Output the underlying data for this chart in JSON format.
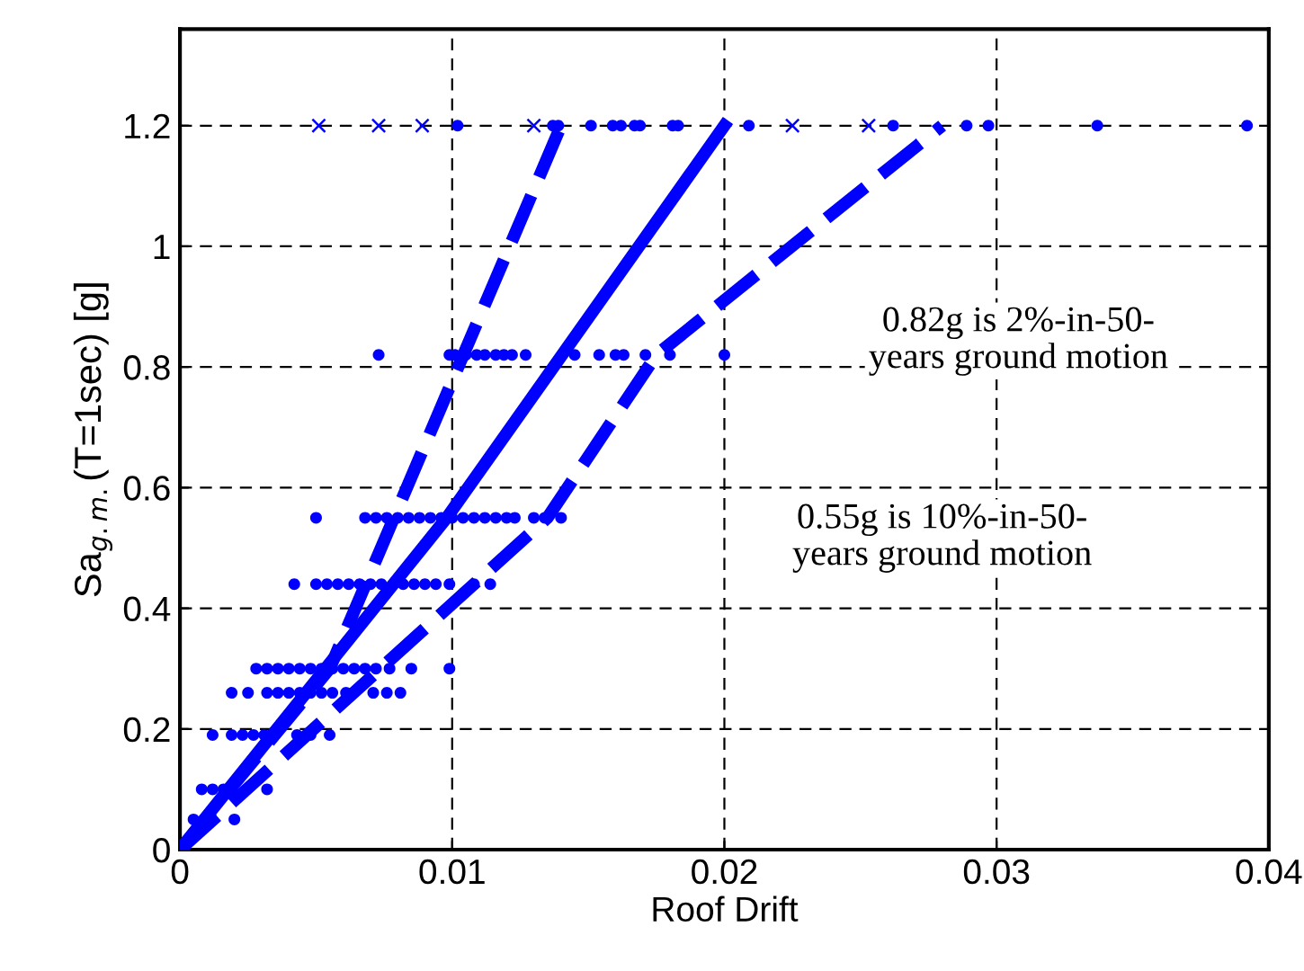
{
  "chart_data": {
    "type": "scatter",
    "xlabel": "Roof Drift",
    "ylabel": "Sa$_{g.m.}$(T=1sec) [g]",
    "xlim": [
      0,
      0.04
    ],
    "ylim": [
      0,
      1.36
    ],
    "xticks": [
      0,
      0.01,
      0.02,
      0.03,
      0.04
    ],
    "yticks": [
      0,
      0.2,
      0.4,
      0.6,
      0.8,
      1,
      1.2
    ],
    "grid": true,
    "series": [
      {
        "type": "scatter",
        "marker": "circle",
        "color": "#0000ff",
        "x": [
          0.0102,
          0.0137,
          0.0139,
          0.0151,
          0.0159,
          0.0162,
          0.0167,
          0.0169,
          0.0181,
          0.0183,
          0.0209,
          0.0262,
          0.0289,
          0.0297,
          0.0337,
          0.0392,
          0.0073,
          0.0099,
          0.0101,
          0.0105,
          0.0109,
          0.0112,
          0.0116,
          0.0119,
          0.0122,
          0.0127,
          0.0145,
          0.0154,
          0.016,
          0.0163,
          0.0171,
          0.018,
          0.02,
          0.005,
          0.0068,
          0.0072,
          0.0076,
          0.008,
          0.0084,
          0.0088,
          0.0092,
          0.0096,
          0.01,
          0.0104,
          0.0108,
          0.0112,
          0.0116,
          0.012,
          0.0123,
          0.013,
          0.0134,
          0.014,
          0.0042,
          0.005,
          0.0054,
          0.0058,
          0.0062,
          0.0066,
          0.007,
          0.0074,
          0.0082,
          0.0086,
          0.009,
          0.0094,
          0.0099,
          0.0108,
          0.0114,
          0.0028,
          0.0032,
          0.0036,
          0.004,
          0.0044,
          0.0048,
          0.0052,
          0.0056,
          0.006,
          0.0064,
          0.0068,
          0.0072,
          0.0077,
          0.0085,
          0.0099,
          0.0019,
          0.0025,
          0.0032,
          0.0036,
          0.004,
          0.0044,
          0.0048,
          0.0052,
          0.0056,
          0.0061,
          0.0071,
          0.0076,
          0.0081,
          0.0012,
          0.0019,
          0.0023,
          0.0027,
          0.0031,
          0.0043,
          0.0048,
          0.0055,
          0.0008,
          0.0012,
          0.0016,
          0.0032,
          0.0005,
          0.002
        ],
        "values": [
          1.2,
          1.2,
          1.2,
          1.2,
          1.2,
          1.2,
          1.2,
          1.2,
          1.2,
          1.2,
          1.2,
          1.2,
          1.2,
          1.2,
          1.2,
          1.2,
          0.82,
          0.82,
          0.82,
          0.82,
          0.82,
          0.82,
          0.82,
          0.82,
          0.82,
          0.82,
          0.82,
          0.82,
          0.82,
          0.82,
          0.82,
          0.82,
          0.82,
          0.55,
          0.55,
          0.55,
          0.55,
          0.55,
          0.55,
          0.55,
          0.55,
          0.55,
          0.55,
          0.55,
          0.55,
          0.55,
          0.55,
          0.55,
          0.55,
          0.55,
          0.55,
          0.55,
          0.44,
          0.44,
          0.44,
          0.44,
          0.44,
          0.44,
          0.44,
          0.44,
          0.44,
          0.44,
          0.44,
          0.44,
          0.44,
          0.44,
          0.44,
          0.3,
          0.3,
          0.3,
          0.3,
          0.3,
          0.3,
          0.3,
          0.3,
          0.3,
          0.3,
          0.3,
          0.3,
          0.3,
          0.3,
          0.3,
          0.26,
          0.26,
          0.26,
          0.26,
          0.26,
          0.26,
          0.26,
          0.26,
          0.26,
          0.26,
          0.26,
          0.26,
          0.26,
          0.19,
          0.19,
          0.19,
          0.19,
          0.19,
          0.19,
          0.19,
          0.19,
          0.1,
          0.1,
          0.1,
          0.1,
          0.05,
          0.05
        ]
      },
      {
        "type": "scatter",
        "marker": "cross",
        "color": "#0000ff",
        "x": [
          0.0051,
          0.0073,
          0.0089,
          0.013,
          0.0225,
          0.0253
        ],
        "values": [
          1.2,
          1.2,
          1.2,
          1.2,
          1.2,
          1.2
        ]
      },
      {
        "type": "line",
        "line_style": "dashed",
        "color": "#0000ff",
        "x": [
          0,
          0.0055,
          0.014
        ],
        "values": [
          0,
          0.3,
          1.2
        ]
      },
      {
        "type": "line",
        "line_style": "solid",
        "color": "#0000ff",
        "x": [
          0,
          0.0098,
          0.02
        ],
        "values": [
          0,
          0.55,
          1.2
        ]
      },
      {
        "type": "line",
        "line_style": "dashed",
        "color": "#0000ff",
        "x": [
          0,
          0.0135,
          0.0175,
          0.028
        ],
        "values": [
          0,
          0.55,
          0.82,
          1.2
        ]
      }
    ],
    "annotations": [
      "0.82g is 2%-in-50-\nyears ground motion",
      "0.55g is 10%-in-50-\nyears ground motion"
    ]
  }
}
